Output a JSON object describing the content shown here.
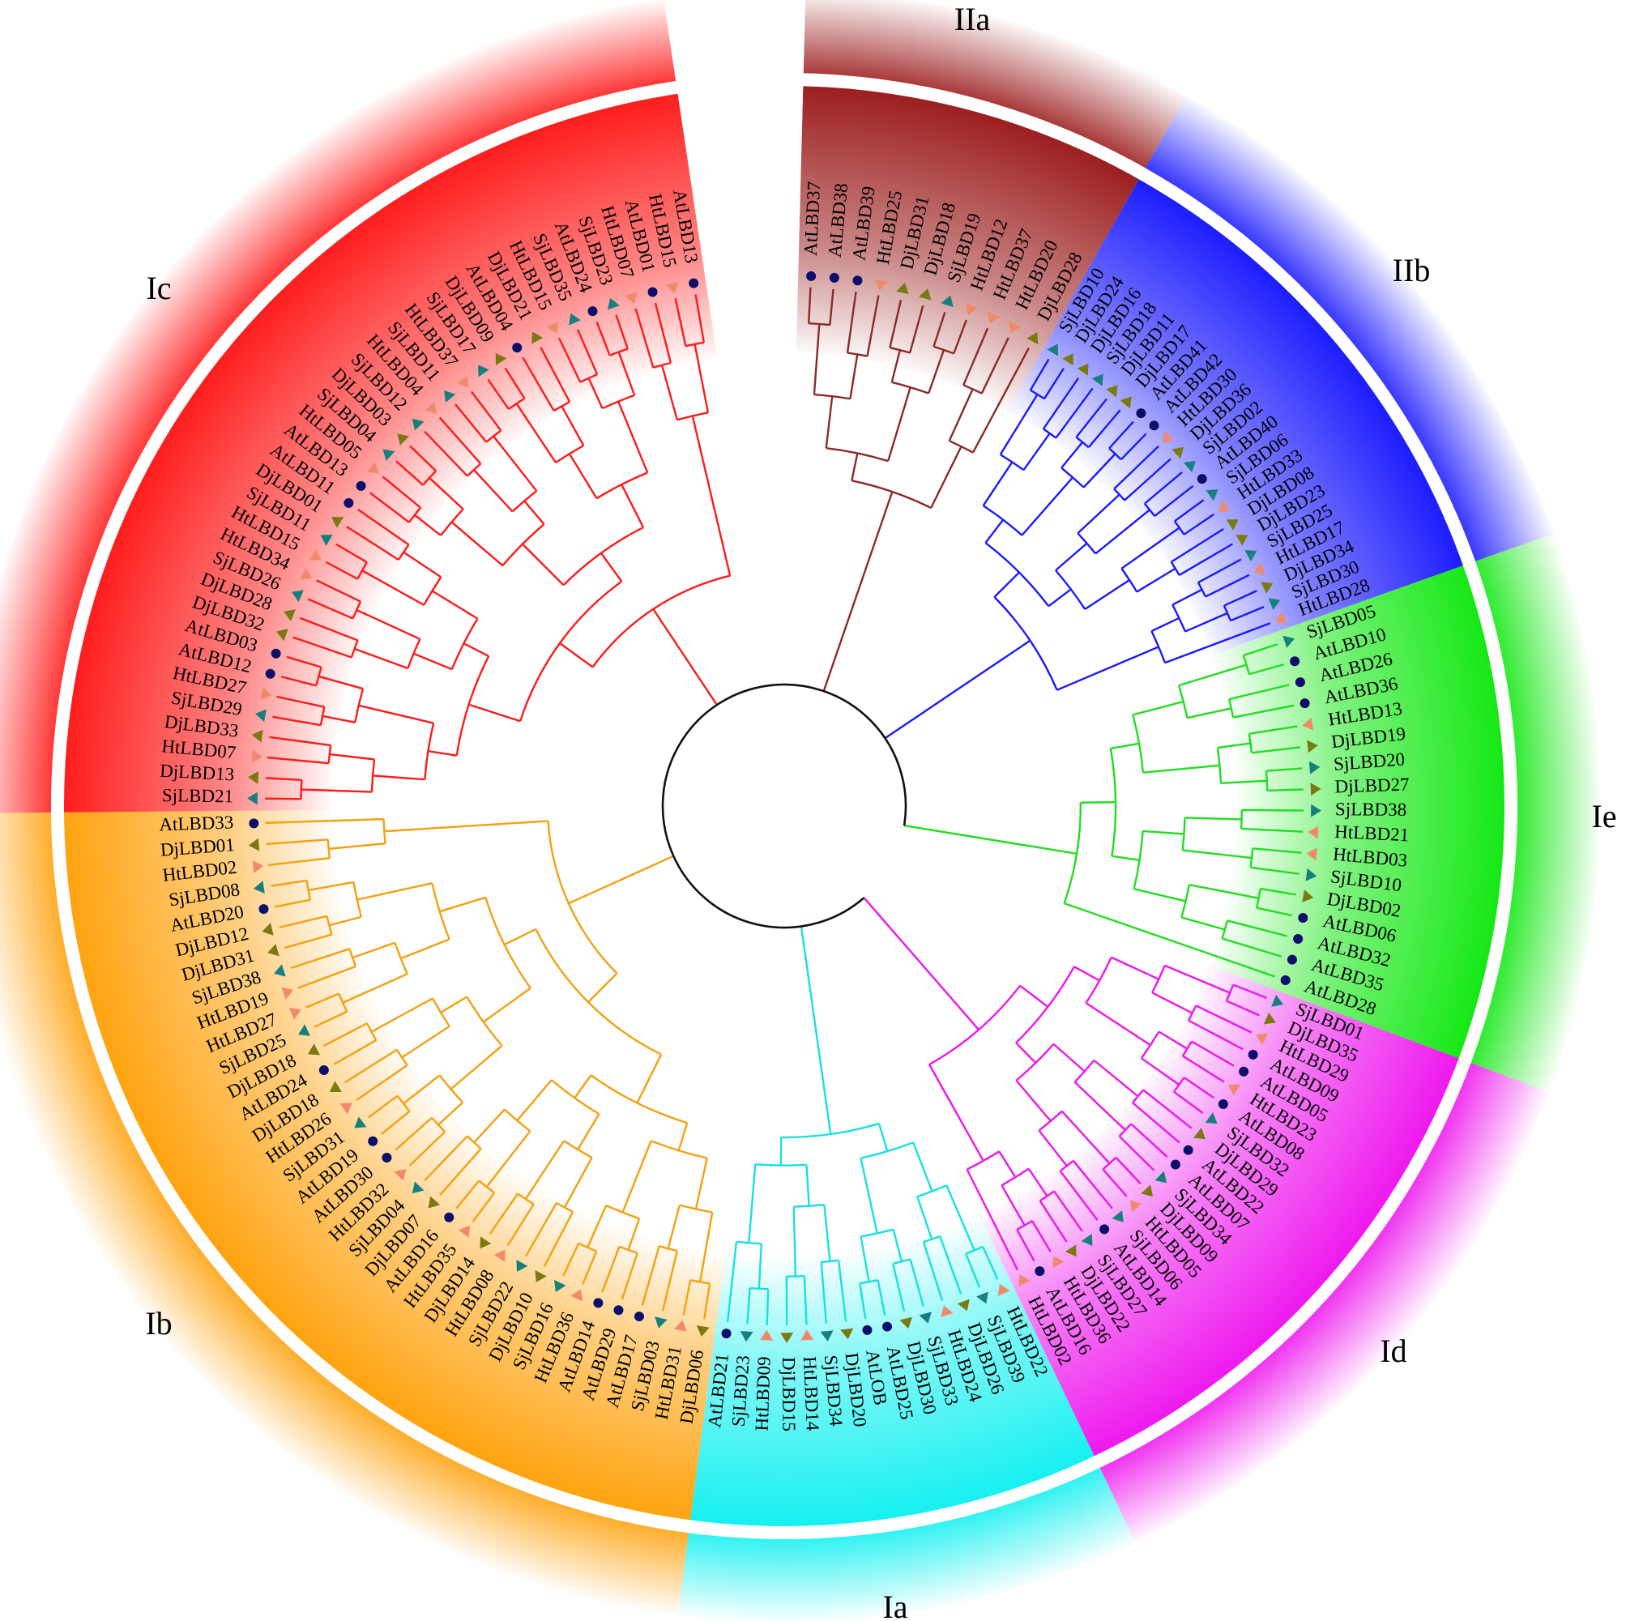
{
  "title": "",
  "marker_colors": {
    "At": "#0d0d6b",
    "Ht": "#f08a6a",
    "Dj": "#7a7a10",
    "Sj": "#17807f"
  },
  "marker_shapes": {
    "At": "circle",
    "Ht": "triangle-up",
    "Dj": "triangle-down",
    "Sj": "triangle-down"
  },
  "clades": [
    {
      "id": "IIa",
      "label": "IIa",
      "color": "#9b1c1c",
      "members": [
        "AtLBD37",
        "AtLBD38",
        "AtLBD39",
        "HtLBD25",
        "DjLBD31",
        "DjLBD18",
        "SjLBD19",
        "HtLBD12",
        "HtLBD37",
        "HtLBD20",
        "DjLBD28"
      ]
    },
    {
      "id": "IIb",
      "label": "IIb",
      "color": "#1a1aff",
      "members": [
        "SjLBD10",
        "DjLBD24",
        "DjLBD16",
        "SjLBD18",
        "DjLBD11",
        "DjLBD17",
        "AtLBD41",
        "AtLBD42",
        "HtLBD30",
        "DjLBD36",
        "SjLBD02",
        "AtLBD40",
        "SjLBD06",
        "HtLBD33",
        "DjLBD08",
        "DjLBD23",
        "SjLBD25",
        "HtLBD17",
        "DjLBD34",
        "SjLBD30",
        "HtLBD28"
      ]
    },
    {
      "id": "Ie",
      "label": "Ie",
      "color": "#12e812",
      "members": [
        "SjLBD05",
        "AtLBD10",
        "AtLBD26",
        "AtLBD36",
        "HtLBD13",
        "DjLBD19",
        "SjLBD20",
        "DjLBD27",
        "SjLBD38",
        "HtLBD21",
        "HtLBD03",
        "SjLBD10",
        "DjLBD02",
        "AtLBD06",
        "AtLBD32",
        "AtLBD35",
        "AtLBD28"
      ]
    },
    {
      "id": "Id",
      "label": "Id",
      "color": "#ee16ee",
      "members": [
        "SjLBD01",
        "DjLBD35",
        "HtLBD29",
        "AtLBD09",
        "AtLBD05",
        "HtLBD23",
        "AtLBD08",
        "SjLBD32",
        "DjLBD29",
        "AtLBD22",
        "AtLBD07",
        "SjLBD34",
        "DjLBD09",
        "HtLBD05",
        "SjLBD06",
        "AtLBD14",
        "SjLBD27",
        "DjLBD22",
        "HtLBD36",
        "AtLBD16",
        "HtLBD02"
      ]
    },
    {
      "id": "Ia",
      "label": "Ia",
      "color": "#14f0f0",
      "members": [
        "HtLBD22",
        "SjLBD39",
        "DjLBD26",
        "HtLBD24",
        "SjLBD33",
        "DjLBD30",
        "AtLBD25",
        "AtLOB",
        "DjLBD20",
        "SjLBD34",
        "HtLBD14",
        "DjLBD15",
        "HtLBD09",
        "SjLBD23",
        "AtLBD21"
      ]
    },
    {
      "id": "Ib",
      "label": "Ib",
      "color": "#ffa20d",
      "members": [
        "DjLBD06",
        "HtLBD31",
        "SjLBD03",
        "AtLBD17",
        "AtLBD29",
        "AtLBD14",
        "HtLBD36",
        "SjLBD16",
        "DjLBD10",
        "SjLBD22",
        "HtLBD08",
        "DjLBD14",
        "HtLBD35",
        "AtLBD16",
        "DjLBD07",
        "SjLBD04",
        "HtLBD32",
        "AtLBD30",
        "AtLBD19",
        "SjLBD31",
        "HtLBD26",
        "DjLBD18",
        "AtLBD24",
        "DjLBD18",
        "SjLBD25",
        "HtLBD27",
        "HtLBD19",
        "SjLBD38",
        "DjLBD31",
        "DjLBD12",
        "AtLBD20",
        "SjLBD08",
        "HtLBD02",
        "DjLBD01",
        "AtLBD33"
      ]
    },
    {
      "id": "Ic",
      "label": "Ic",
      "color": "#ff1a1a",
      "members": [
        "SjLBD21",
        "DjLBD13",
        "HtLBD07",
        "DjLBD33",
        "SjLBD29",
        "HtLBD27",
        "AtLBD12",
        "AtLBD03",
        "DjLBD32",
        "DjLBD28",
        "SjLBD26",
        "HtLBD34",
        "HtLBD15",
        "SjLBD11",
        "DjLBD01",
        "AtLBD11",
        "AtLBD13",
        "HtLBD05",
        "SjLBD04",
        "DjLBD03",
        "SjLBD12",
        "HtLBD04",
        "SjLBD11",
        "HtLBD37",
        "SjLBD17",
        "DjLBD09",
        "AtLBD04",
        "DjLBD21",
        "HtLBD15",
        "SjLBD35",
        "AtLBD24",
        "SjLBD23",
        "HtLBD07",
        "AtLBD01",
        "HtLBD15",
        "AtLBD13"
      ]
    }
  ]
}
